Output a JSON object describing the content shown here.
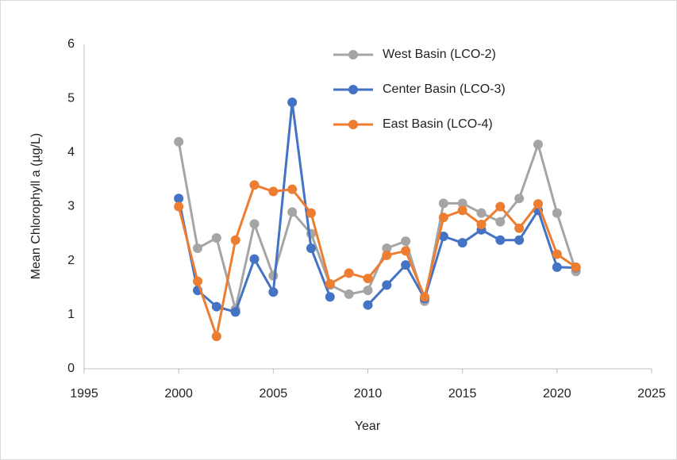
{
  "chart_data": {
    "type": "line",
    "x_label": "Year",
    "y_label": "Mean Chlorophyll a (µg/L)",
    "x": [
      2000,
      2001,
      2002,
      2003,
      2004,
      2005,
      2006,
      2007,
      2008,
      2009,
      2010,
      2011,
      2012,
      2013,
      2014,
      2015,
      2016,
      2017,
      2018,
      2019,
      2020,
      2021
    ],
    "series": [
      {
        "name": "West Basin (LCO-2)",
        "color": "#a5a5a5",
        "values": [
          4.2,
          2.23,
          2.42,
          1.1,
          2.68,
          1.72,
          2.9,
          2.5,
          1.55,
          1.38,
          1.45,
          2.23,
          2.36,
          1.25,
          3.06,
          3.06,
          2.88,
          2.72,
          3.15,
          4.15,
          2.88,
          1.8
        ]
      },
      {
        "name": "Center Basin (LCO-3)",
        "color": "#4472c4",
        "values": [
          3.15,
          1.45,
          1.15,
          1.05,
          2.03,
          1.42,
          4.93,
          2.23,
          1.33,
          null,
          1.18,
          1.55,
          1.92,
          1.3,
          2.45,
          2.33,
          2.57,
          2.38,
          2.38,
          2.93,
          1.88,
          1.87
        ]
      },
      {
        "name": "East Basin (LCO-4)",
        "color": "#ed7d31",
        "values": [
          3.0,
          1.62,
          0.6,
          2.38,
          3.4,
          3.28,
          3.32,
          2.88,
          1.57,
          1.77,
          1.67,
          2.1,
          2.18,
          1.33,
          2.8,
          2.93,
          2.67,
          3.0,
          2.6,
          3.05,
          2.12,
          1.88
        ]
      }
    ],
    "xlim": [
      1995,
      2025
    ],
    "xticks": [
      1995,
      2000,
      2005,
      2010,
      2015,
      2020,
      2025
    ],
    "ylim": [
      0,
      6
    ],
    "yticks": [
      0,
      1,
      2,
      3,
      4,
      5,
      6
    ],
    "legend": "upper-right"
  }
}
